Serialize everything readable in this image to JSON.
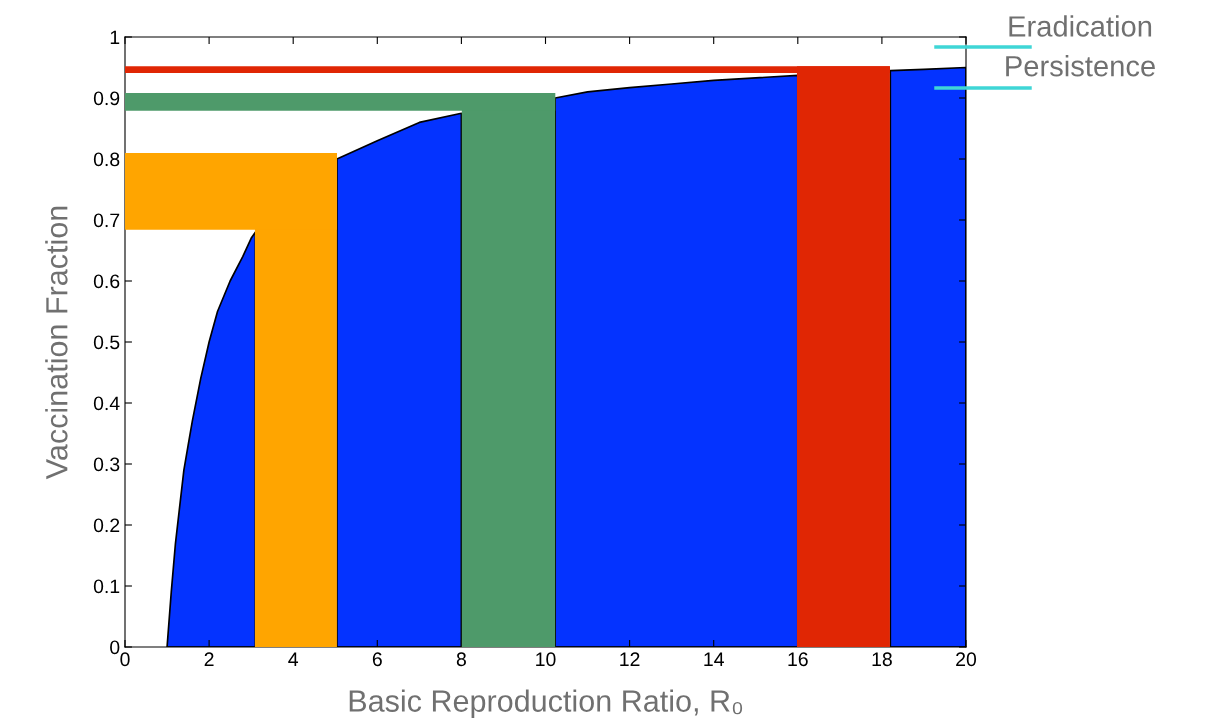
{
  "chart_data": {
    "type": "area",
    "xlabel": "Basic Reproduction Ratio, R₀",
    "ylabel": "Vaccination Fraction",
    "series": [
      {
        "color": "#0433ff",
        "x": [
          1,
          1.1,
          1.2,
          1.3,
          1.4,
          1.5,
          1.6,
          1.8,
          2,
          2.2,
          2.5,
          2.8,
          3,
          3.1,
          4,
          5.04,
          6,
          7,
          8,
          9,
          10.23,
          11,
          12,
          13,
          14,
          15,
          16,
          17,
          18.2,
          19,
          20
        ],
        "values": [
          0,
          0.09,
          0.17,
          0.23,
          0.29,
          0.33,
          0.37,
          0.44,
          0.5,
          0.55,
          0.6,
          0.64,
          0.67,
          0.68,
          null,
          0.8,
          0.83,
          0.86,
          0.875,
          null,
          0.9,
          0.91,
          0.917,
          0.923,
          0.929,
          0.933,
          0.937,
          null,
          0.945,
          0.947,
          0.95
        ]
      }
    ],
    "bands": [
      {
        "axis": "x",
        "from": 3.09,
        "to": 5.04,
        "color": "#ffa500"
      },
      {
        "axis": "y",
        "from": 0.684,
        "to": 0.81,
        "color": "#ffa500"
      },
      {
        "axis": "x",
        "from": 8.01,
        "to": 10.23,
        "color": "#4e9a6a"
      },
      {
        "axis": "y",
        "from": 0.879,
        "to": 0.908,
        "color": "#4e9a6a"
      },
      {
        "axis": "x",
        "from": 15.98,
        "to": 18.19,
        "color": "#e02604"
      },
      {
        "axis": "y",
        "from": 0.941,
        "to": 0.952,
        "color": "#e02604"
      }
    ],
    "annotations": [
      "Eradication",
      "Persistence"
    ],
    "xlim": [
      0,
      20
    ],
    "xticks": [
      0,
      2,
      4,
      6,
      8,
      10,
      12,
      14,
      16,
      18,
      20
    ],
    "ylim": [
      0,
      1
    ],
    "yticks": [
      0,
      0.1,
      0.2,
      0.3,
      0.4,
      0.5,
      0.6,
      0.7,
      0.8,
      0.9,
      1
    ],
    "grid": false,
    "legend": false
  }
}
